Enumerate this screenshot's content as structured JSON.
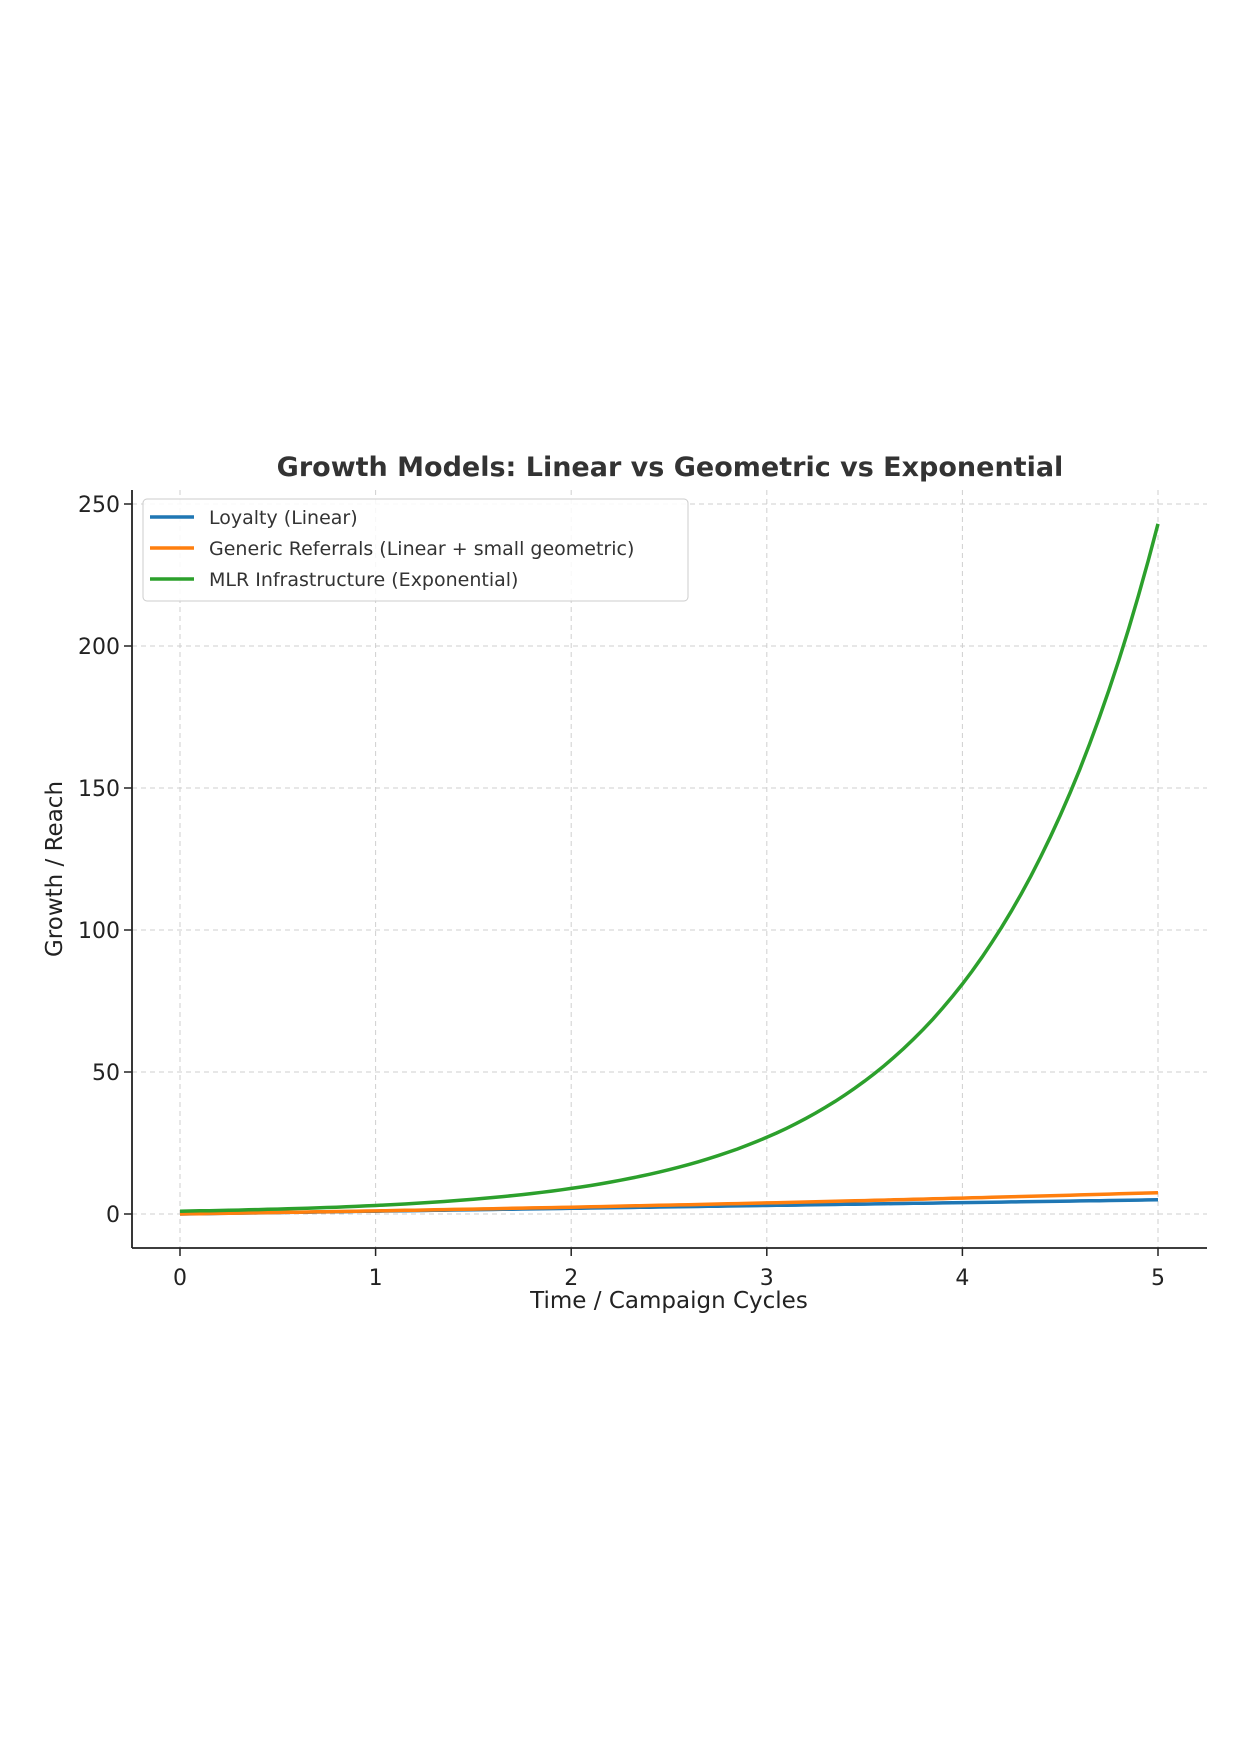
{
  "chart_data": {
    "type": "line",
    "title": "Growth Models: Linear vs Geometric vs Exponential",
    "xlabel": "Time / Campaign Cycles",
    "ylabel": "Growth / Reach",
    "xlim": [
      -0.25,
      5.25
    ],
    "ylim": [
      -12,
      255
    ],
    "xticks": [
      0,
      1,
      2,
      3,
      4,
      5
    ],
    "yticks": [
      0,
      50,
      100,
      150,
      200,
      250
    ],
    "grid": true,
    "legend_position": "top-left",
    "x": [
      0,
      0.5,
      1,
      1.5,
      2,
      2.5,
      3,
      3.5,
      4,
      4.5,
      5
    ],
    "series": [
      {
        "name": "Loyalty (Linear)",
        "color": "#1f77b4",
        "values": [
          0,
          0.5,
          1,
          1.5,
          2,
          2.5,
          3,
          3.5,
          4,
          4.5,
          5
        ]
      },
      {
        "name": "Generic Referrals (Linear + small geometric)",
        "color": "#ff7f0e",
        "values": [
          0,
          0.53,
          1.1,
          1.73,
          2.4,
          3.13,
          3.9,
          4.73,
          5.6,
          6.53,
          7.5
        ]
      },
      {
        "name": "MLR Infrastructure (Exponential)",
        "color": "#2ca02c",
        "values": [
          1,
          1.73,
          3,
          5.2,
          9,
          15.6,
          27,
          46.8,
          81,
          140.3,
          243
        ]
      }
    ]
  }
}
